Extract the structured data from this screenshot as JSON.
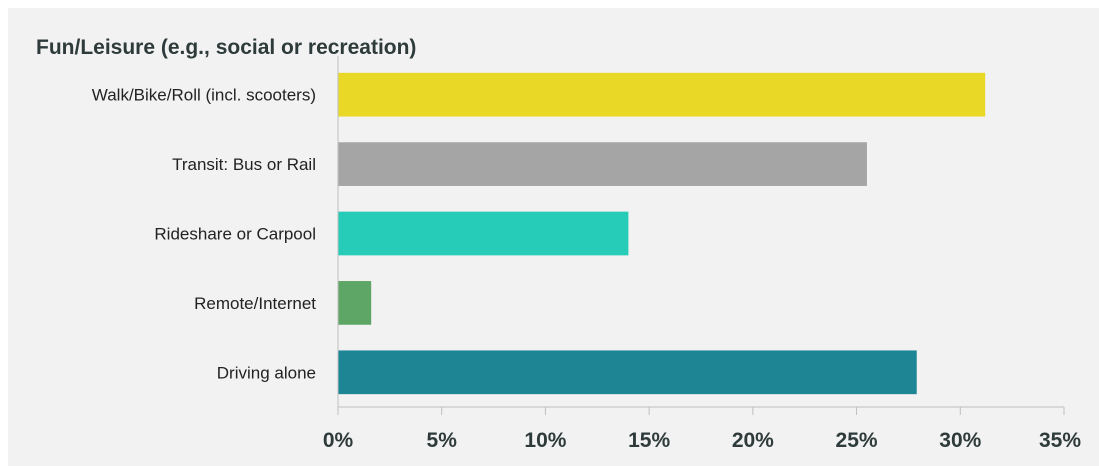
{
  "chart_data": {
    "type": "bar",
    "orientation": "horizontal",
    "title": "Fun/Leisure (e.g., social or recreation)",
    "xlabel": "",
    "ylabel": "",
    "categories": [
      "Walk/Bike/Roll (incl. scooters)",
      "Transit: Bus or Rail",
      "Rideshare or Carpool",
      "Remote/Internet",
      "Driving alone"
    ],
    "values": [
      31.2,
      25.5,
      14.0,
      1.6,
      27.9
    ],
    "colors": [
      "#e9d926",
      "#a5a5a5",
      "#27ccb8",
      "#5ea665",
      "#1e8595"
    ],
    "xlim": [
      0,
      35
    ],
    "x_ticks": [
      "0%",
      "5%",
      "10%",
      "15%",
      "20%",
      "25%",
      "30%",
      "35%"
    ],
    "grid": false
  }
}
